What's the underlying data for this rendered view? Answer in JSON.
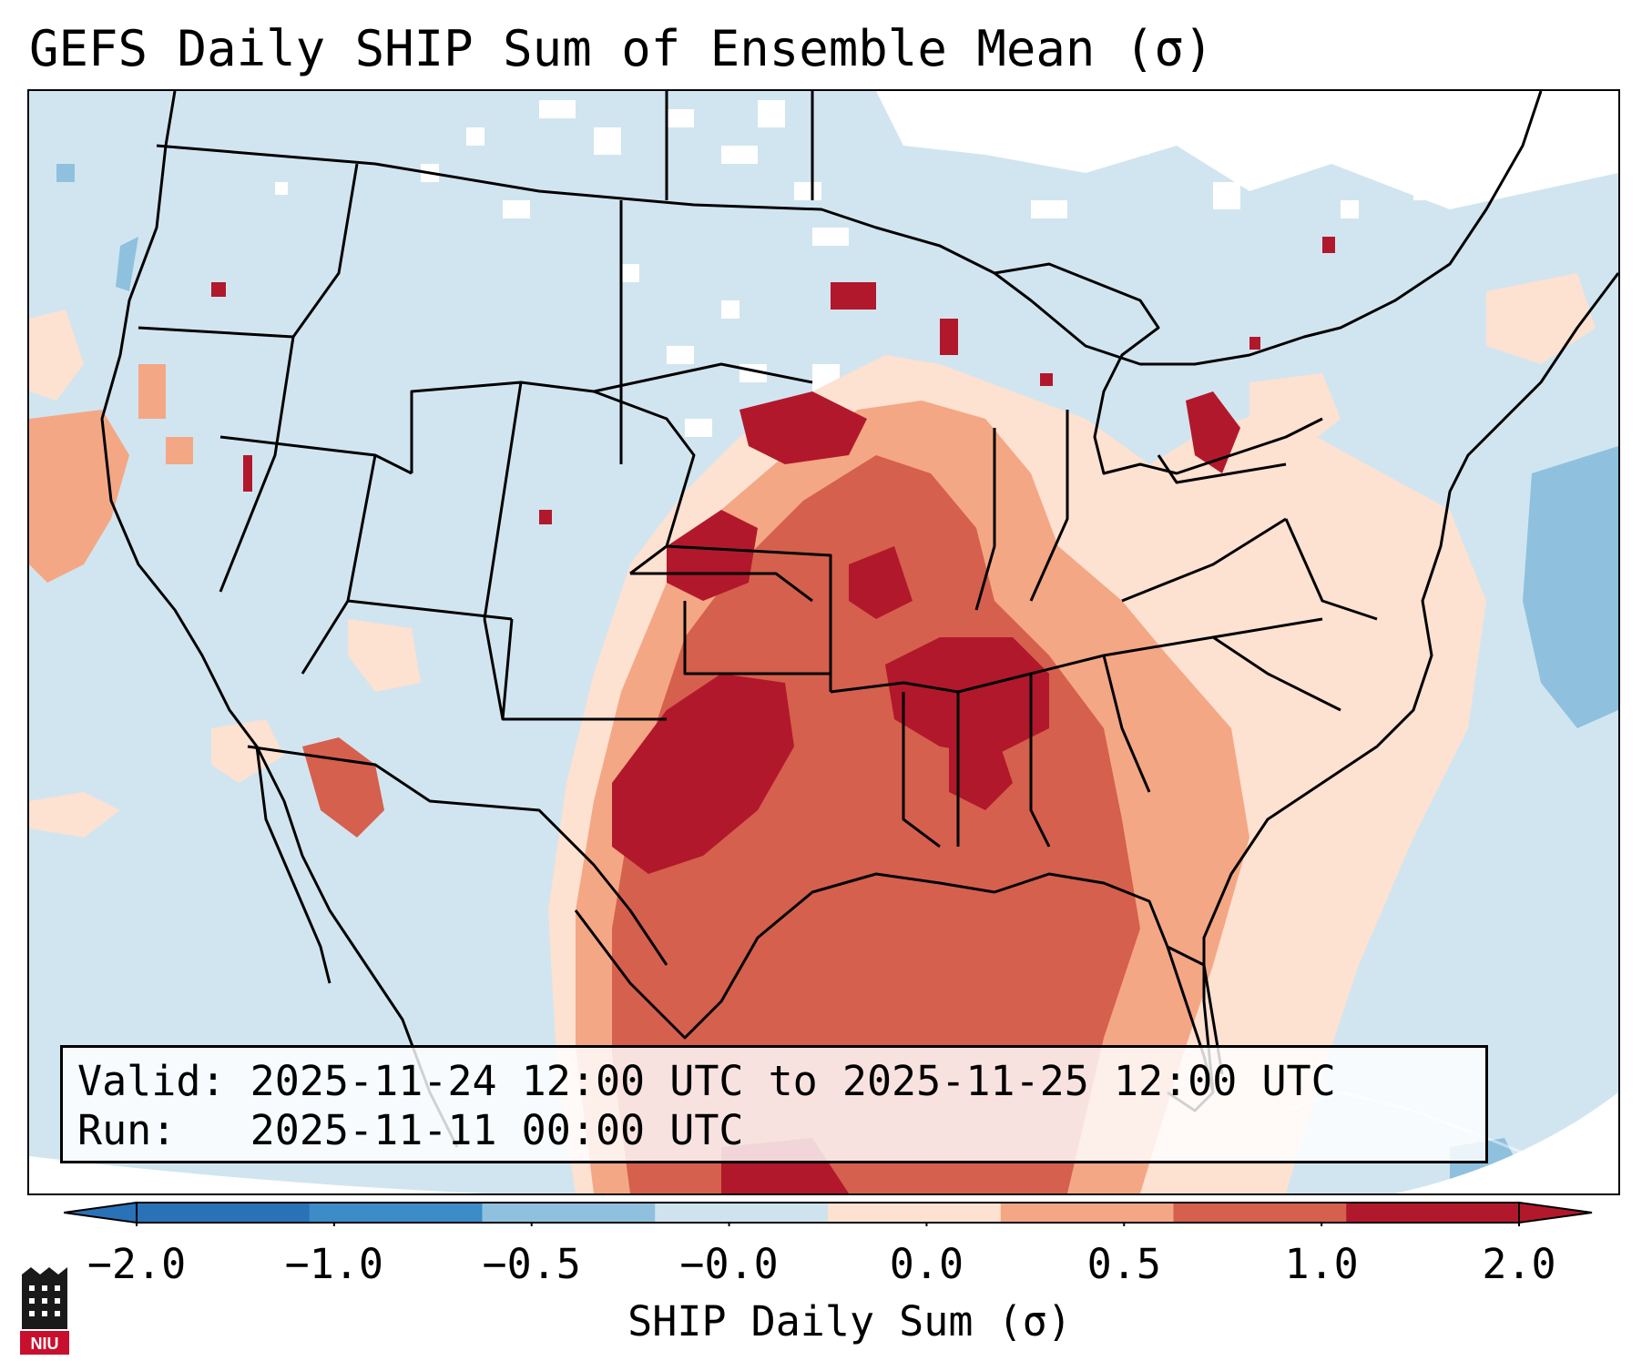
{
  "title": "GEFS Daily SHIP Sum of Ensemble Mean (σ)",
  "info": {
    "valid_label": "Valid:",
    "valid_value": "2025-11-24 12:00 UTC to 2025-11-25 12:00 UTC",
    "run_label": "Run:",
    "run_value": "2025-11-11 00:00 UTC"
  },
  "colorbar": {
    "label": "SHIP Daily Sum (σ)",
    "ticks": [
      "−2.0",
      "−1.0",
      "−0.5",
      "−0.0",
      "0.0",
      "0.5",
      "1.0",
      "2.0"
    ],
    "colors": [
      "#2a72b8",
      "#3c8cc8",
      "#8fc1de",
      "#cfe3ef",
      "#fde1d1",
      "#f4a784",
      "#d5604d",
      "#b2182b"
    ],
    "extend": "both"
  },
  "map": {
    "projection": "Lambert Conformal",
    "region": "Contiguous United States",
    "background_color": "#d1e5f0",
    "white_color": "#ffffff",
    "border_color": "#000000"
  },
  "logo": {
    "text": "NIU",
    "color": "#c8102e"
  }
}
